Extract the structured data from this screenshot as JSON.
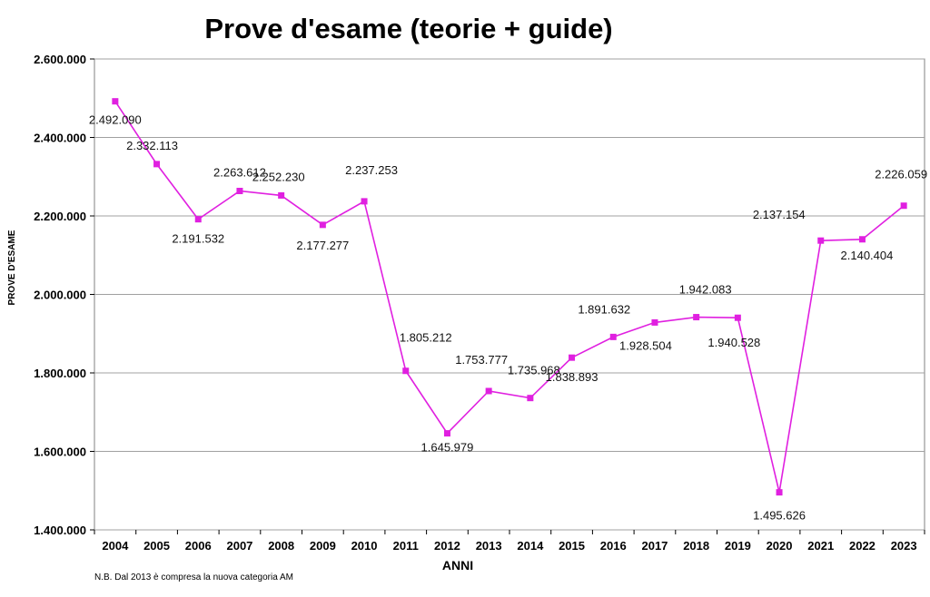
{
  "chart_data": {
    "type": "line",
    "title": "Prove d'esame (teorie + guide)",
    "xlabel": "ANNI",
    "ylabel": "PROVE D'ESAME",
    "x": [
      "2004",
      "2005",
      "2006",
      "2007",
      "2008",
      "2009",
      "2010",
      "2011",
      "2012",
      "2013",
      "2014",
      "2015",
      "2016",
      "2017",
      "2018",
      "2019",
      "2020",
      "2021",
      "2022",
      "2023"
    ],
    "values": [
      2492090,
      2332113,
      2191532,
      2263612,
      2252230,
      2177277,
      2237253,
      1805212,
      1645979,
      1753777,
      1735968,
      1838893,
      1891632,
      1928504,
      1942083,
      1940528,
      1495626,
      2137154,
      2140404,
      2226059
    ],
    "value_labels": [
      "2.492.090",
      "2.332.113",
      "2.191.532",
      "2.263.612",
      "2.252.230",
      "2.177.277",
      "2.237.253",
      "1.805.212",
      "1.645.979",
      "1.753.777",
      "1.735.968",
      "1.838.893",
      "1.891.632",
      "1.928.504",
      "1.942.083",
      "1.940.528",
      "1.495.626",
      "2.137.154",
      "2.140.404",
      "2.226.059"
    ],
    "ylim": [
      1400000,
      2600000
    ],
    "yticks": [
      1400000,
      1600000,
      1800000,
      2000000,
      2200000,
      2400000,
      2600000
    ],
    "ytick_labels": [
      "1.400.000",
      "1.600.000",
      "1.800.000",
      "2.000.000",
      "2.200.000",
      "2.400.000",
      "2.600.000"
    ],
    "grid": true,
    "legend": "none",
    "line_color": "#e020e0",
    "grid_color": "#a0a0a0",
    "footnote": "N.B. Dal 2013 è compresa la nuova categoria AM"
  }
}
